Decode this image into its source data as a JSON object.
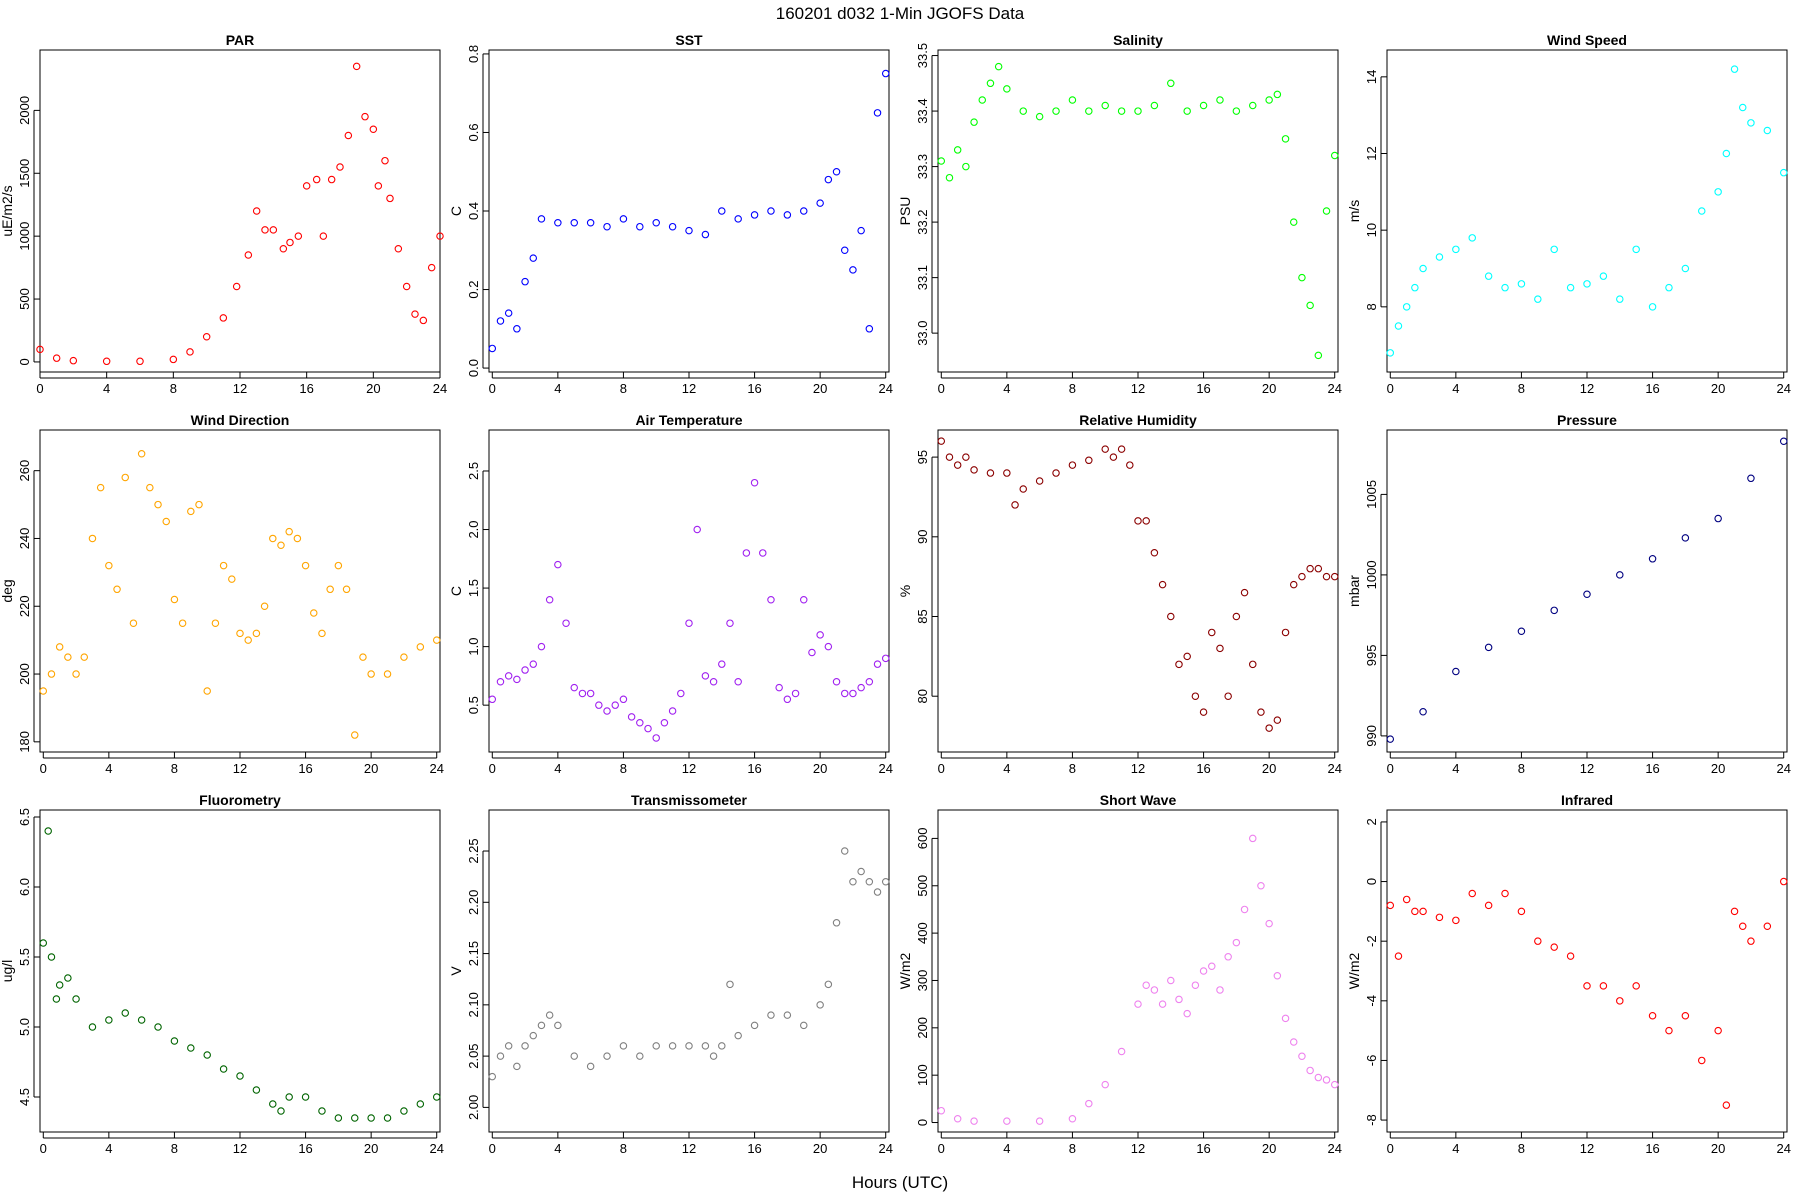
{
  "figure": {
    "title": "160201   d032   1-Min  JGOFS Data",
    "xlabel": "Hours (UTC)"
  },
  "chart_data": [
    {
      "id": "par",
      "type": "scatter",
      "title": "PAR",
      "ylabel": "uE/m2/s",
      "color": "#ff0000",
      "xlim": [
        0,
        24
      ],
      "ylim": [
        -80,
        2480
      ],
      "xticks": [
        0,
        4,
        8,
        12,
        16,
        20,
        24
      ],
      "yticks": [
        0,
        500,
        1000,
        1500,
        2000
      ],
      "x": [
        0,
        1,
        2,
        4,
        6,
        8,
        9,
        10,
        11,
        11.8,
        12.5,
        13,
        13.5,
        14,
        14.6,
        15,
        15.5,
        16,
        16.6,
        17,
        17.5,
        18,
        18.5,
        19,
        19.5,
        20,
        20.3,
        20.7,
        21,
        21.5,
        22,
        22.5,
        23,
        23.5,
        24
      ],
      "y": [
        100,
        30,
        10,
        5,
        5,
        20,
        80,
        200,
        350,
        600,
        850,
        1200,
        1050,
        1050,
        900,
        950,
        1000,
        1400,
        1450,
        1000,
        1450,
        1550,
        1800,
        2350,
        1950,
        1850,
        1400,
        1600,
        1300,
        900,
        600,
        380,
        330,
        750,
        1000
      ]
    },
    {
      "id": "sst",
      "type": "scatter",
      "title": "SST",
      "ylabel": "C",
      "color": "#0000ff",
      "xlim": [
        -0.2,
        24.2
      ],
      "ylim": [
        -0.01,
        0.81
      ],
      "xticks": [
        0,
        4,
        8,
        12,
        16,
        20,
        24
      ],
      "yticks": [
        0.0,
        0.2,
        0.4,
        0.6,
        0.8
      ],
      "x": [
        0,
        0.5,
        1,
        1.5,
        2,
        2.5,
        3,
        4,
        5,
        6,
        7,
        8,
        9,
        10,
        11,
        12,
        13,
        14,
        15,
        16,
        17,
        18,
        19,
        20,
        20.5,
        21,
        21.5,
        22,
        22.5,
        23,
        23.5,
        24
      ],
      "y": [
        0.05,
        0.12,
        0.14,
        0.1,
        0.22,
        0.28,
        0.38,
        0.37,
        0.37,
        0.37,
        0.36,
        0.38,
        0.36,
        0.37,
        0.36,
        0.35,
        0.34,
        0.4,
        0.38,
        0.39,
        0.4,
        0.39,
        0.4,
        0.42,
        0.48,
        0.5,
        0.3,
        0.25,
        0.35,
        0.1,
        0.65,
        0.75
      ]
    },
    {
      "id": "salinity",
      "type": "scatter",
      "title": "Salinity",
      "ylabel": "PSU",
      "color": "#00ff00",
      "xlim": [
        -0.2,
        24.2
      ],
      "ylim": [
        32.93,
        33.51
      ],
      "xticks": [
        0,
        4,
        8,
        12,
        16,
        20,
        24
      ],
      "yticks": [
        33.0,
        33.1,
        33.2,
        33.3,
        33.4,
        33.5
      ],
      "x": [
        0,
        0.5,
        1,
        1.5,
        2,
        2.5,
        3,
        3.5,
        4,
        5,
        6,
        7,
        8,
        9,
        10,
        11,
        12,
        13,
        14,
        15,
        16,
        17,
        18,
        19,
        20,
        20.5,
        21,
        21.5,
        22,
        22.5,
        23,
        23.5,
        24
      ],
      "y": [
        33.31,
        33.28,
        33.33,
        33.3,
        33.38,
        33.42,
        33.45,
        33.48,
        33.44,
        33.4,
        33.39,
        33.4,
        33.42,
        33.4,
        33.41,
        33.4,
        33.4,
        33.41,
        33.45,
        33.4,
        33.41,
        33.42,
        33.4,
        33.41,
        33.42,
        33.43,
        33.35,
        33.2,
        33.1,
        33.05,
        32.96,
        33.22,
        33.32
      ]
    },
    {
      "id": "wind_speed",
      "type": "scatter",
      "title": "Wind Speed",
      "ylabel": "m/s",
      "color": "#00ffff",
      "xlim": [
        -0.2,
        24.2
      ],
      "ylim": [
        6.3,
        14.7
      ],
      "xticks": [
        0,
        4,
        8,
        12,
        16,
        20,
        24
      ],
      "yticks": [
        8,
        10,
        12,
        14
      ],
      "x": [
        0,
        0.5,
        1,
        1.5,
        2,
        3,
        4,
        5,
        6,
        7,
        8,
        9,
        10,
        11,
        12,
        13,
        14,
        15,
        16,
        17,
        18,
        19,
        20,
        20.5,
        21,
        21.5,
        22,
        23,
        24
      ],
      "y": [
        6.8,
        7.5,
        8,
        8.5,
        9,
        9.3,
        9.5,
        9.8,
        8.8,
        8.5,
        8.6,
        8.2,
        9.5,
        8.5,
        8.6,
        8.8,
        8.2,
        9.5,
        8,
        8.5,
        9,
        10.5,
        11,
        12,
        14.2,
        13.2,
        12.8,
        12.6,
        11.5
      ]
    },
    {
      "id": "wind_direction",
      "type": "scatter",
      "title": "Wind Direction",
      "ylabel": "deg",
      "color": "#ffa500",
      "xlim": [
        -0.2,
        24.2
      ],
      "ylim": [
        177,
        272
      ],
      "xticks": [
        0,
        4,
        8,
        12,
        16,
        20,
        24
      ],
      "yticks": [
        180,
        200,
        220,
        240,
        260
      ],
      "x": [
        0,
        0.5,
        1,
        1.5,
        2,
        2.5,
        3,
        3.5,
        4,
        4.5,
        5,
        5.5,
        6,
        6.5,
        7,
        7.5,
        8,
        8.5,
        9,
        9.5,
        10,
        10.5,
        11,
        11.5,
        12,
        12.5,
        13,
        13.5,
        14,
        14.5,
        15,
        15.5,
        16,
        16.5,
        17,
        17.5,
        18,
        18.5,
        19,
        19.5,
        20,
        21,
        22,
        23,
        24
      ],
      "y": [
        195,
        200,
        208,
        205,
        200,
        205,
        240,
        255,
        232,
        225,
        258,
        215,
        265,
        255,
        250,
        245,
        222,
        215,
        248,
        250,
        195,
        215,
        232,
        228,
        212,
        210,
        212,
        220,
        240,
        238,
        242,
        240,
        232,
        218,
        212,
        225,
        232,
        225,
        182,
        205,
        200,
        200,
        205,
        208,
        210
      ]
    },
    {
      "id": "air_temperature",
      "type": "scatter",
      "title": "Air Temperature",
      "ylabel": "C",
      "color": "#a020f0",
      "xlim": [
        -0.2,
        24.2
      ],
      "ylim": [
        0.1,
        2.85
      ],
      "xticks": [
        0,
        4,
        8,
        12,
        16,
        20,
        24
      ],
      "yticks": [
        0.5,
        1.0,
        1.5,
        2.0,
        2.5
      ],
      "x": [
        0,
        0.5,
        1,
        1.5,
        2,
        2.5,
        3,
        3.5,
        4,
        4.5,
        5,
        5.5,
        6,
        6.5,
        7,
        7.5,
        8,
        8.5,
        9,
        9.5,
        10,
        10.5,
        11,
        11.5,
        12,
        12.5,
        13,
        13.5,
        14,
        14.5,
        15,
        15.5,
        16,
        16.5,
        17,
        17.5,
        18,
        18.5,
        19,
        19.5,
        20,
        20.5,
        21,
        21.5,
        22,
        22.5,
        23,
        23.5,
        24
      ],
      "y": [
        0.55,
        0.7,
        0.75,
        0.72,
        0.8,
        0.85,
        1.0,
        1.4,
        1.7,
        1.2,
        0.65,
        0.6,
        0.6,
        0.5,
        0.45,
        0.5,
        0.55,
        0.4,
        0.35,
        0.3,
        0.22,
        0.35,
        0.45,
        0.6,
        1.2,
        2.0,
        0.75,
        0.7,
        0.85,
        1.2,
        0.7,
        1.8,
        2.4,
        1.8,
        1.4,
        0.65,
        0.55,
        0.6,
        1.4,
        0.95,
        1.1,
        1.0,
        0.7,
        0.6,
        0.6,
        0.65,
        0.7,
        0.85,
        0.9
      ]
    },
    {
      "id": "relative_humidity",
      "type": "scatter",
      "title": "Relative Humidity",
      "ylabel": "%",
      "color": "#8b0000",
      "xlim": [
        -0.2,
        24.2
      ],
      "ylim": [
        76.5,
        96.7
      ],
      "xticks": [
        0,
        4,
        8,
        12,
        16,
        20,
        24
      ],
      "yticks": [
        80,
        85,
        90,
        95
      ],
      "x": [
        0,
        0.5,
        1,
        1.5,
        2,
        3,
        4,
        4.5,
        5,
        6,
        7,
        8,
        9,
        10,
        10.5,
        11,
        11.5,
        12,
        12.5,
        13,
        13.5,
        14,
        14.5,
        15,
        15.5,
        16,
        16.5,
        17,
        17.5,
        18,
        18.5,
        19,
        19.5,
        20,
        20.5,
        21,
        21.5,
        22,
        22.5,
        23,
        23.5,
        24
      ],
      "y": [
        96,
        95,
        94.5,
        95,
        94.2,
        94,
        94,
        92,
        93,
        93.5,
        94,
        94.5,
        94.8,
        95.5,
        95,
        95.5,
        94.5,
        91,
        91,
        89,
        87,
        85,
        82,
        82.5,
        80,
        79,
        84,
        83,
        80,
        85,
        86.5,
        82,
        79,
        78,
        78.5,
        84,
        87,
        87.5,
        88,
        88,
        87.5,
        87.5
      ]
    },
    {
      "id": "pressure",
      "type": "scatter",
      "title": "Pressure",
      "ylabel": "mbar",
      "color": "#000080",
      "xlim": [
        -0.2,
        24.2
      ],
      "ylim": [
        989,
        1009
      ],
      "xticks": [
        0,
        4,
        8,
        12,
        16,
        20,
        24
      ],
      "yticks": [
        990,
        995,
        1000,
        1005
      ],
      "x": [
        0,
        2,
        4,
        6,
        8,
        10,
        12,
        14,
        16,
        18,
        20,
        22,
        24
      ],
      "y": [
        989.8,
        991.5,
        994,
        995.5,
        996.5,
        997.8,
        998.8,
        1000,
        1001,
        1002.3,
        1003.5,
        1006,
        1008.3
      ]
    },
    {
      "id": "fluorometry",
      "type": "scatter",
      "title": "Fluorometry",
      "ylabel": "ug/l",
      "color": "#006400",
      "xlim": [
        -0.2,
        24.2
      ],
      "ylim": [
        4.25,
        6.55
      ],
      "xticks": [
        0,
        4,
        8,
        12,
        16,
        20,
        24
      ],
      "yticks": [
        4.5,
        5.0,
        5.5,
        6.0,
        6.5
      ],
      "x": [
        0,
        0.3,
        0.5,
        0.8,
        1,
        1.5,
        2,
        3,
        4,
        5,
        6,
        7,
        8,
        9,
        10,
        11,
        12,
        13,
        14,
        14.5,
        15,
        16,
        17,
        18,
        19,
        20,
        21,
        22,
        23,
        24
      ],
      "y": [
        5.6,
        6.4,
        5.5,
        5.2,
        5.3,
        5.35,
        5.2,
        5.0,
        5.05,
        5.1,
        5.05,
        5.0,
        4.9,
        4.85,
        4.8,
        4.7,
        4.65,
        4.55,
        4.45,
        4.4,
        4.5,
        4.5,
        4.4,
        4.35,
        4.35,
        4.35,
        4.35,
        4.4,
        4.45,
        4.5
      ]
    },
    {
      "id": "transmissometer",
      "type": "scatter",
      "title": "Transmissometer",
      "ylabel": "V",
      "color": "#808080",
      "xlim": [
        -0.2,
        24.2
      ],
      "ylim": [
        1.976,
        2.29
      ],
      "xticks": [
        0,
        4,
        8,
        12,
        16,
        20,
        24
      ],
      "yticks": [
        2.0,
        2.05,
        2.1,
        2.15,
        2.2,
        2.25
      ],
      "x": [
        0,
        0.5,
        1,
        1.5,
        2,
        2.5,
        3,
        3.5,
        4,
        5,
        6,
        7,
        8,
        9,
        10,
        11,
        12,
        13,
        13.5,
        14,
        14.5,
        15,
        16,
        17,
        18,
        19,
        20,
        20.5,
        21,
        21.5,
        22,
        22.5,
        23,
        23.5,
        24
      ],
      "y": [
        2.03,
        2.05,
        2.06,
        2.04,
        2.06,
        2.07,
        2.08,
        2.09,
        2.08,
        2.05,
        2.04,
        2.05,
        2.06,
        2.05,
        2.06,
        2.06,
        2.06,
        2.06,
        2.05,
        2.06,
        2.12,
        2.07,
        2.08,
        2.09,
        2.09,
        2.08,
        2.1,
        2.12,
        2.18,
        2.25,
        2.22,
        2.23,
        2.22,
        2.21,
        2.22
      ]
    },
    {
      "id": "short_wave",
      "type": "scatter",
      "title": "Short Wave",
      "ylabel": "W/m2",
      "color": "#ee82ee",
      "xlim": [
        -0.2,
        24.2
      ],
      "ylim": [
        -20,
        660
      ],
      "xticks": [
        0,
        4,
        8,
        12,
        16,
        20,
        24
      ],
      "yticks": [
        0,
        100,
        200,
        300,
        400,
        500,
        600
      ],
      "x": [
        0,
        1,
        2,
        4,
        6,
        8,
        9,
        10,
        11,
        12,
        12.5,
        13,
        13.5,
        14,
        14.5,
        15,
        15.5,
        16,
        16.5,
        17,
        17.5,
        18,
        18.5,
        19,
        19.5,
        20,
        20.5,
        21,
        21.5,
        22,
        22.5,
        23,
        23.5,
        24
      ],
      "y": [
        25,
        8,
        3,
        3,
        3,
        8,
        40,
        80,
        150,
        250,
        290,
        280,
        250,
        300,
        260,
        230,
        290,
        320,
        330,
        280,
        350,
        380,
        450,
        600,
        500,
        420,
        310,
        220,
        170,
        140,
        110,
        95,
        90,
        80
      ]
    },
    {
      "id": "infrared",
      "type": "scatter",
      "title": "Infrared",
      "ylabel": "W/m2",
      "color": "#ff0000",
      "xlim": [
        -0.2,
        24.2
      ],
      "ylim": [
        -8.4,
        2.4
      ],
      "xticks": [
        0,
        4,
        8,
        12,
        16,
        20,
        24
      ],
      "yticks": [
        -8,
        -6,
        -4,
        -2,
        0,
        2
      ],
      "x": [
        0,
        0.5,
        1,
        1.5,
        2,
        3,
        4,
        5,
        6,
        7,
        8,
        9,
        10,
        11,
        12,
        13,
        14,
        15,
        16,
        17,
        18,
        19,
        20,
        20.5,
        21,
        21.5,
        22,
        23,
        24
      ],
      "y": [
        -0.8,
        -2.5,
        -0.6,
        -1,
        -1,
        -1.2,
        -1.3,
        -0.4,
        -0.8,
        -0.4,
        -1,
        -2,
        -2.2,
        -2.5,
        -3.5,
        -3.5,
        -4,
        -3.5,
        -4.5,
        -5,
        -4.5,
        -6,
        -5,
        -7.5,
        -1,
        -1.5,
        -2,
        -1.5,
        0
      ]
    }
  ]
}
